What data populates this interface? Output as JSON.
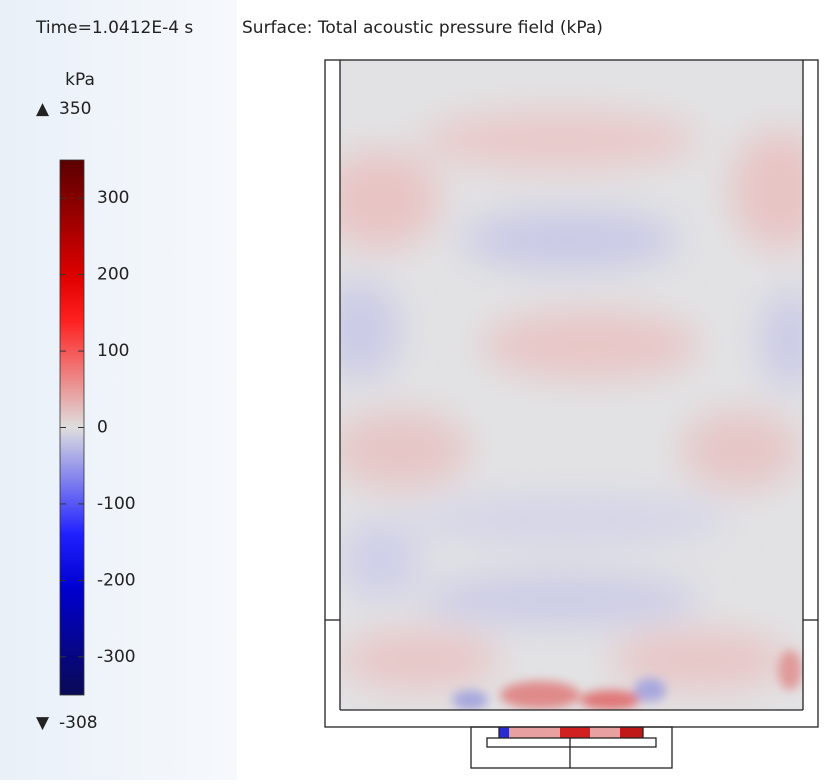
{
  "header": {
    "time": "Time=1.0412E-4 s",
    "title": "Surface: Total acoustic pressure field (kPa)"
  },
  "colorbar": {
    "unit": "kPa",
    "max": 350,
    "min": -308,
    "lim": [
      -350,
      350
    ],
    "ticks": [
      300,
      200,
      100,
      0,
      -100,
      -200,
      -300
    ]
  }
}
